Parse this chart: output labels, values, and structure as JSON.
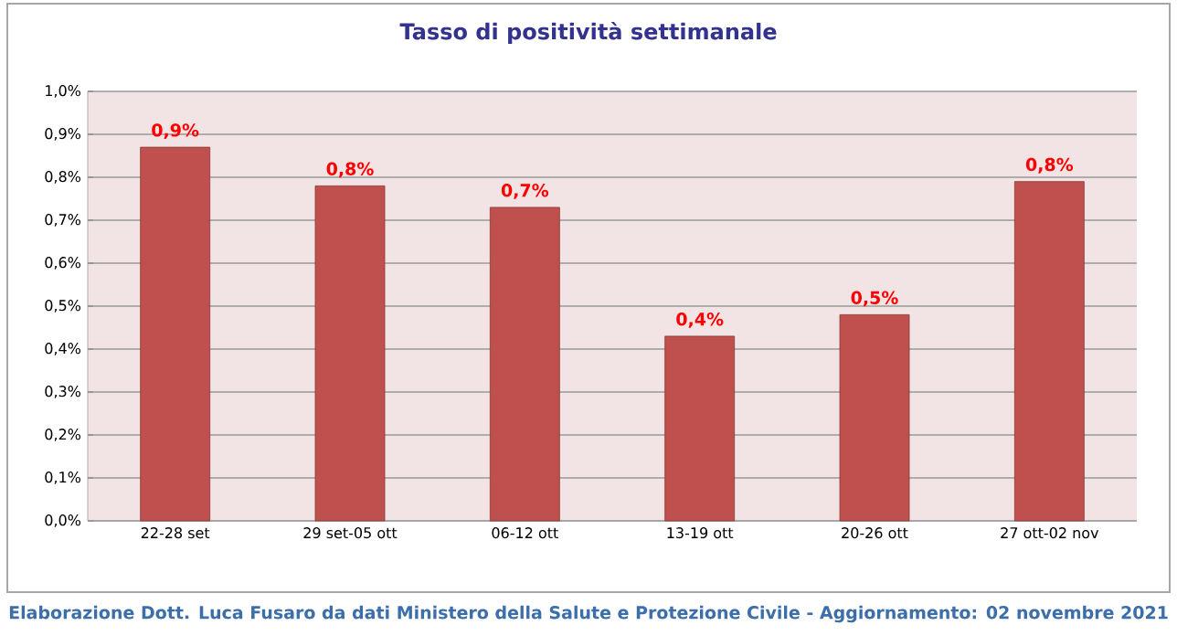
{
  "chart_data": {
    "type": "bar",
    "title": "Tasso di positività settimanale",
    "categories": [
      "22-28 set",
      "29 set-05 ott",
      "06-12 ott",
      "13-19 ott",
      "20-26 ott",
      "27 ott-02 nov"
    ],
    "values": [
      0.87,
      0.78,
      0.73,
      0.43,
      0.48,
      0.79
    ],
    "value_labels": [
      "0,9%",
      "0,8%",
      "0,7%",
      "0,4%",
      "0,5%",
      "0,8%"
    ],
    "color": "#c0504d",
    "ylim": [
      0,
      1.0
    ],
    "yticks": [
      {
        "value": 0,
        "label": "0,0%"
      },
      {
        "value": 0.1,
        "label": "0,1%"
      },
      {
        "value": 0.2,
        "label": "0,2%"
      },
      {
        "value": 0.3,
        "label": "0,3%"
      },
      {
        "value": 0.4,
        "label": "0,4%"
      },
      {
        "value": 0.5,
        "label": "0,5%"
      },
      {
        "value": 0.6,
        "label": "0,6%"
      },
      {
        "value": 0.7,
        "label": "0,7%"
      },
      {
        "value": 0.8,
        "label": "0,8%"
      },
      {
        "value": 0.9,
        "label": "0,9%"
      },
      {
        "value": 1.0,
        "label": "1,0%"
      }
    ],
    "grid": "y",
    "annotations": [
      "Elaborazione Dott. Luca Fusaro da dati Ministero della Salute e Protezione Civile - Aggiornamento: 02 novembre 2021"
    ]
  }
}
